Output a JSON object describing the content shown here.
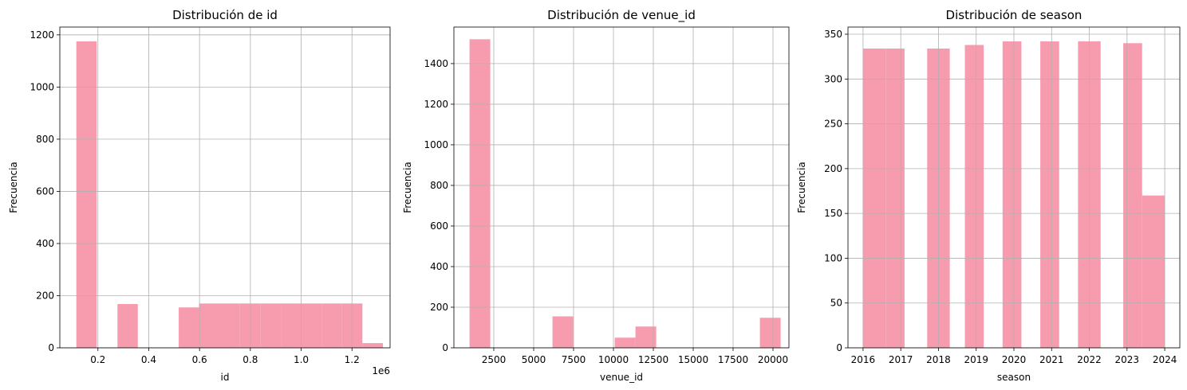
{
  "chart_data": [
    {
      "type": "bar",
      "title": "Distribución de id",
      "xlabel": "id",
      "ylabel": "Frecuencia",
      "xlim": [
        0.05,
        1.35
      ],
      "ylim": [
        0,
        1230
      ],
      "xticks": [
        0.2,
        0.4,
        0.6,
        0.8,
        1.0,
        1.2
      ],
      "xtick_labels": [
        "0.2",
        "0.4",
        "0.6",
        "0.8",
        "1.0",
        "1.2"
      ],
      "yticks": [
        0,
        200,
        400,
        600,
        800,
        1000,
        1200
      ],
      "ytick_labels": [
        "0",
        "200",
        "400",
        "600",
        "800",
        "1000",
        "1200"
      ],
      "offset_text": "1e6",
      "grid": true,
      "bar_color": "#f79cae",
      "bins": [
        {
          "x0": 0.115,
          "x1": 0.195,
          "value": 1175
        },
        {
          "x0": 0.277,
          "x1": 0.357,
          "value": 168
        },
        {
          "x0": 0.518,
          "x1": 0.598,
          "value": 155
        },
        {
          "x0": 0.598,
          "x1": 0.678,
          "value": 170
        },
        {
          "x0": 0.678,
          "x1": 0.759,
          "value": 170
        },
        {
          "x0": 0.759,
          "x1": 0.839,
          "value": 170
        },
        {
          "x0": 0.839,
          "x1": 0.92,
          "value": 170
        },
        {
          "x0": 0.92,
          "x1": 1.0,
          "value": 170
        },
        {
          "x0": 1.0,
          "x1": 1.081,
          "value": 170
        },
        {
          "x0": 1.081,
          "x1": 1.161,
          "value": 170
        },
        {
          "x0": 1.161,
          "x1": 1.241,
          "value": 170
        },
        {
          "x0": 1.241,
          "x1": 1.322,
          "value": 18
        }
      ]
    },
    {
      "type": "bar",
      "title": "Distribución de venue_id",
      "xlabel": "venue_id",
      "ylabel": "Frecuencia",
      "xlim": [
        0,
        21000
      ],
      "ylim": [
        0,
        1580
      ],
      "xticks": [
        2500,
        5000,
        7500,
        10000,
        12500,
        15000,
        17500,
        20000
      ],
      "xtick_labels": [
        "2500",
        "5000",
        "7500",
        "10000",
        "12500",
        "15000",
        "17500",
        "20000"
      ],
      "yticks": [
        0,
        200,
        400,
        600,
        800,
        1000,
        1200,
        1400
      ],
      "ytick_labels": [
        "0",
        "200",
        "400",
        "600",
        "800",
        "1000",
        "1200",
        "1400"
      ],
      "grid": true,
      "bar_color": "#f79cae",
      "bins": [
        {
          "x0": 980,
          "x1": 2280,
          "value": 1520
        },
        {
          "x0": 6180,
          "x1": 7480,
          "value": 155
        },
        {
          "x0": 10080,
          "x1": 11380,
          "value": 50
        },
        {
          "x0": 11380,
          "x1": 12680,
          "value": 105
        },
        {
          "x0": 19180,
          "x1": 20480,
          "value": 148
        }
      ]
    },
    {
      "type": "bar",
      "title": "Distribución de season",
      "xlabel": "season",
      "ylabel": "Frecuencia",
      "xlim": [
        2015.6,
        2024.4
      ],
      "ylim": [
        0,
        358
      ],
      "xticks": [
        2016,
        2017,
        2018,
        2019,
        2020,
        2021,
        2022,
        2023,
        2024
      ],
      "xtick_labels": [
        "2016",
        "2017",
        "2018",
        "2019",
        "2020",
        "2021",
        "2022",
        "2023",
        "2024"
      ],
      "yticks": [
        0,
        50,
        100,
        150,
        200,
        250,
        300,
        350
      ],
      "ytick_labels": [
        "0",
        "50",
        "100",
        "150",
        "200",
        "250",
        "300",
        "350"
      ],
      "grid": true,
      "bar_color": "#f79cae",
      "bins": [
        {
          "x0": 2016.0,
          "x1": 2016.6,
          "value": 334
        },
        {
          "x0": 2016.6,
          "x1": 2017.1,
          "value": 334
        },
        {
          "x0": 2017.7,
          "x1": 2018.3,
          "value": 334
        },
        {
          "x0": 2018.7,
          "x1": 2019.2,
          "value": 338
        },
        {
          "x0": 2019.7,
          "x1": 2020.2,
          "value": 342
        },
        {
          "x0": 2020.7,
          "x1": 2021.2,
          "value": 342
        },
        {
          "x0": 2021.7,
          "x1": 2022.3,
          "value": 342
        },
        {
          "x0": 2022.9,
          "x1": 2023.4,
          "value": 340
        },
        {
          "x0": 2023.4,
          "x1": 2024.0,
          "value": 170
        }
      ]
    }
  ]
}
